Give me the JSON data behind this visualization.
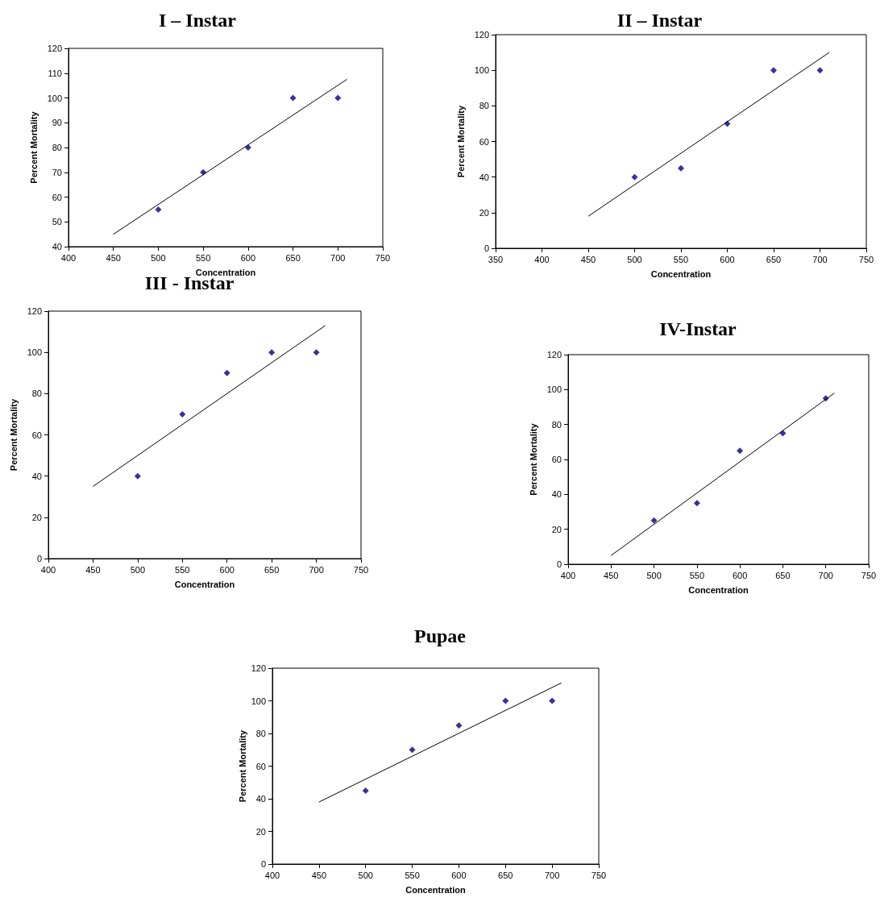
{
  "chart_data": [
    {
      "type": "scatter",
      "title": "I – Instar",
      "xlabel": "Concentration",
      "ylabel": "Percent Mortality",
      "marker": "diamond",
      "grid": false,
      "xlim": [
        400,
        750
      ],
      "xticks": [
        400,
        450,
        500,
        550,
        600,
        650,
        700,
        750
      ],
      "ylim": [
        40,
        120
      ],
      "yticks": [
        40,
        50,
        60,
        70,
        80,
        90,
        100,
        110,
        120
      ],
      "series": [
        {
          "color": "#000080",
          "x": [
            500,
            550,
            600,
            650,
            700
          ],
          "values": [
            55,
            70,
            80,
            100,
            100
          ]
        },
        {
          "type": "line",
          "color": "#000000",
          "marker": "none",
          "x": [
            450,
            710
          ],
          "values": [
            45,
            107.5
          ]
        }
      ]
    },
    {
      "type": "scatter",
      "title": "II – Instar",
      "xlabel": "Concentration",
      "ylabel": "Percent Mortality",
      "marker": "diamond",
      "grid": false,
      "xlim": [
        350,
        750
      ],
      "xticks": [
        350,
        400,
        450,
        500,
        550,
        600,
        650,
        700,
        750
      ],
      "ylim": [
        0,
        120
      ],
      "yticks": [
        0,
        20,
        40,
        60,
        80,
        100,
        120
      ],
      "series": [
        {
          "color": "#000080",
          "x": [
            500,
            550,
            600,
            650,
            700
          ],
          "values": [
            40,
            45,
            70,
            100,
            100
          ]
        },
        {
          "type": "line",
          "color": "#000000",
          "marker": "none",
          "x": [
            450,
            710
          ],
          "values": [
            18,
            110
          ]
        }
      ]
    },
    {
      "type": "scatter",
      "title": "III - Instar",
      "xlabel": "Concentration",
      "ylabel": "Percent Mortality",
      "marker": "diamond",
      "grid": false,
      "xlim": [
        400,
        750
      ],
      "xticks": [
        400,
        450,
        500,
        550,
        600,
        650,
        700,
        750
      ],
      "ylim": [
        0,
        120
      ],
      "yticks": [
        0,
        20,
        40,
        60,
        80,
        100,
        120
      ],
      "series": [
        {
          "color": "#000080",
          "x": [
            500,
            550,
            600,
            650,
            700
          ],
          "values": [
            40,
            70,
            90,
            100,
            100
          ]
        },
        {
          "type": "line",
          "color": "#000000",
          "marker": "none",
          "x": [
            450,
            710
          ],
          "values": [
            35,
            113
          ]
        }
      ]
    },
    {
      "type": "scatter",
      "title": "IV-Instar",
      "xlabel": "Concentration",
      "ylabel": "Percent Mortality",
      "marker": "diamond",
      "grid": false,
      "xlim": [
        400,
        750
      ],
      "xticks": [
        400,
        450,
        500,
        550,
        600,
        650,
        700,
        750
      ],
      "ylim": [
        0,
        120
      ],
      "yticks": [
        0,
        20,
        40,
        60,
        80,
        100,
        120
      ],
      "series": [
        {
          "color": "#000080",
          "x": [
            500,
            550,
            600,
            650,
            700
          ],
          "values": [
            25,
            35,
            65,
            75,
            95
          ]
        },
        {
          "type": "line",
          "color": "#000000",
          "marker": "none",
          "x": [
            450,
            710
          ],
          "values": [
            5,
            98
          ]
        }
      ]
    },
    {
      "type": "scatter",
      "title": "Pupae",
      "xlabel": "Concentration",
      "ylabel": "Percent Mortality",
      "marker": "diamond",
      "grid": false,
      "xlim": [
        400,
        750
      ],
      "xticks": [
        400,
        450,
        500,
        550,
        600,
        650,
        700,
        750
      ],
      "ylim": [
        0,
        120
      ],
      "yticks": [
        0,
        20,
        40,
        60,
        80,
        100,
        120
      ],
      "series": [
        {
          "color": "#000080",
          "x": [
            500,
            550,
            600,
            650,
            700
          ],
          "values": [
            45,
            70,
            85,
            100,
            100
          ]
        },
        {
          "type": "line",
          "color": "#000000",
          "marker": "none",
          "x": [
            450,
            710
          ],
          "values": [
            38,
            111
          ]
        }
      ]
    }
  ]
}
